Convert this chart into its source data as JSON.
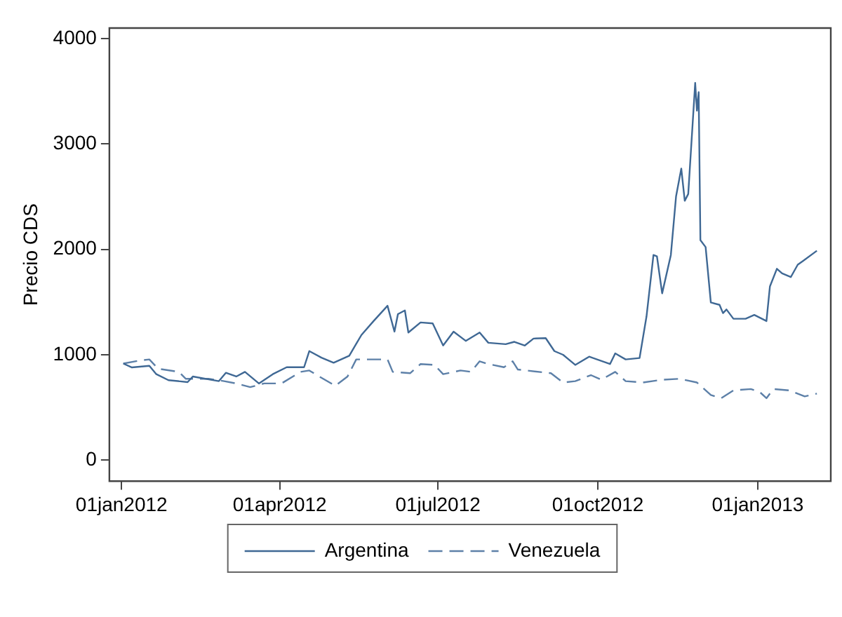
{
  "chart_data": {
    "type": "line",
    "ylabel": "Precio CDS",
    "legend": "bottom",
    "grid": false,
    "marker": "none",
    "xlim": [
      "2011-12-25",
      "2013-02-12"
    ],
    "xticks": [
      {
        "value": "2012-01-01",
        "label": "01jan2012"
      },
      {
        "value": "2012-04-01",
        "label": "01apr2012"
      },
      {
        "value": "2012-07-01",
        "label": "01jul2012"
      },
      {
        "value": "2012-10-01",
        "label": "01oct2012"
      },
      {
        "value": "2013-01-01",
        "label": "01jan2013"
      }
    ],
    "ylim": [
      -200,
      4100
    ],
    "yticks": [
      0,
      1000,
      2000,
      3000,
      4000
    ],
    "series": [
      {
        "name": "Argentina",
        "color": "#3f6894",
        "line_style": "solid",
        "x": [
          "2012-01-02",
          "2012-01-07",
          "2012-01-17",
          "2012-01-21",
          "2012-01-28",
          "2012-02-08",
          "2012-02-11",
          "2012-02-26",
          "2012-03-01",
          "2012-03-07",
          "2012-03-12",
          "2012-03-20",
          "2012-03-28",
          "2012-04-05",
          "2012-04-15",
          "2012-04-18",
          "2012-04-25",
          "2012-05-02",
          "2012-05-11",
          "2012-05-18",
          "2012-05-25",
          "2012-06-02",
          "2012-06-06",
          "2012-06-08",
          "2012-06-12",
          "2012-06-14",
          "2012-06-21",
          "2012-06-28",
          "2012-07-04",
          "2012-07-10",
          "2012-07-17",
          "2012-07-25",
          "2012-07-30",
          "2012-08-09",
          "2012-08-14",
          "2012-08-20",
          "2012-08-25",
          "2012-09-01",
          "2012-09-06",
          "2012-09-11",
          "2012-09-18",
          "2012-09-26",
          "2012-10-08",
          "2012-10-11",
          "2012-10-17",
          "2012-10-25",
          "2012-10-29",
          "2012-11-02",
          "2012-11-04",
          "2012-11-07",
          "2012-11-12",
          "2012-11-15",
          "2012-11-18",
          "2012-11-20",
          "2012-11-22",
          "2012-11-26",
          "2012-11-27",
          "2012-11-28",
          "2012-11-29",
          "2012-12-02",
          "2012-12-05",
          "2012-12-10",
          "2012-12-12",
          "2012-12-14",
          "2012-12-18",
          "2012-12-25",
          "2012-12-30",
          "2013-01-06",
          "2013-01-08",
          "2013-01-12",
          "2013-01-15",
          "2013-01-20",
          "2013-01-24",
          "2013-01-27",
          "2013-02-04"
        ],
        "values": [
          917,
          880,
          895,
          816,
          759,
          741,
          794,
          750,
          829,
          794,
          838,
          728,
          816,
          882,
          882,
          1035,
          973,
          925,
          991,
          1188,
          1320,
          1465,
          1220,
          1386,
          1421,
          1211,
          1307,
          1298,
          1088,
          1220,
          1132,
          1211,
          1114,
          1101,
          1123,
          1088,
          1154,
          1158,
          1035,
          1000,
          904,
          982,
          912,
          1013,
          956,
          969,
          1364,
          1947,
          1934,
          1583,
          1947,
          2504,
          2767,
          2461,
          2526,
          3579,
          3316,
          3491,
          2088,
          2022,
          1496,
          1474,
          1395,
          1430,
          1342,
          1342,
          1378,
          1320,
          1649,
          1816,
          1772,
          1737,
          1855,
          1890,
          1987
        ]
      },
      {
        "name": "Venezuela",
        "color": "#5d80a8",
        "line_style": "dashed",
        "x": [
          "2012-01-02",
          "2012-01-12",
          "2012-01-17",
          "2012-01-22",
          "2012-02-03",
          "2012-02-07",
          "2012-02-20",
          "2012-02-29",
          "2012-03-07",
          "2012-03-15",
          "2012-03-23",
          "2012-04-02",
          "2012-04-13",
          "2012-04-18",
          "2012-04-26",
          "2012-05-03",
          "2012-05-10",
          "2012-05-15",
          "2012-05-25",
          "2012-06-02",
          "2012-06-05",
          "2012-06-15",
          "2012-06-21",
          "2012-06-29",
          "2012-07-04",
          "2012-07-14",
          "2012-07-20",
          "2012-07-25",
          "2012-07-30",
          "2012-08-08",
          "2012-08-13",
          "2012-08-16",
          "2012-09-04",
          "2012-09-11",
          "2012-09-18",
          "2012-09-27",
          "2012-10-03",
          "2012-10-11",
          "2012-10-17",
          "2012-10-27",
          "2012-11-07",
          "2012-11-17",
          "2012-11-27",
          "2012-12-05",
          "2012-12-11",
          "2012-12-18",
          "2012-12-28",
          "2013-01-02",
          "2013-01-06",
          "2013-01-10",
          "2013-01-19",
          "2013-01-28",
          "2013-02-04"
        ],
        "values": [
          917,
          947,
          956,
          868,
          838,
          772,
          772,
          750,
          728,
          693,
          728,
          728,
          838,
          851,
          772,
          706,
          794,
          956,
          956,
          956,
          838,
          825,
          912,
          904,
          816,
          851,
          838,
          938,
          912,
          882,
          938,
          860,
          825,
          737,
          750,
          807,
          763,
          838,
          750,
          737,
          763,
          772,
          737,
          618,
          588,
          662,
          675,
          649,
          588,
          675,
          662,
          605,
          632
        ]
      }
    ]
  }
}
